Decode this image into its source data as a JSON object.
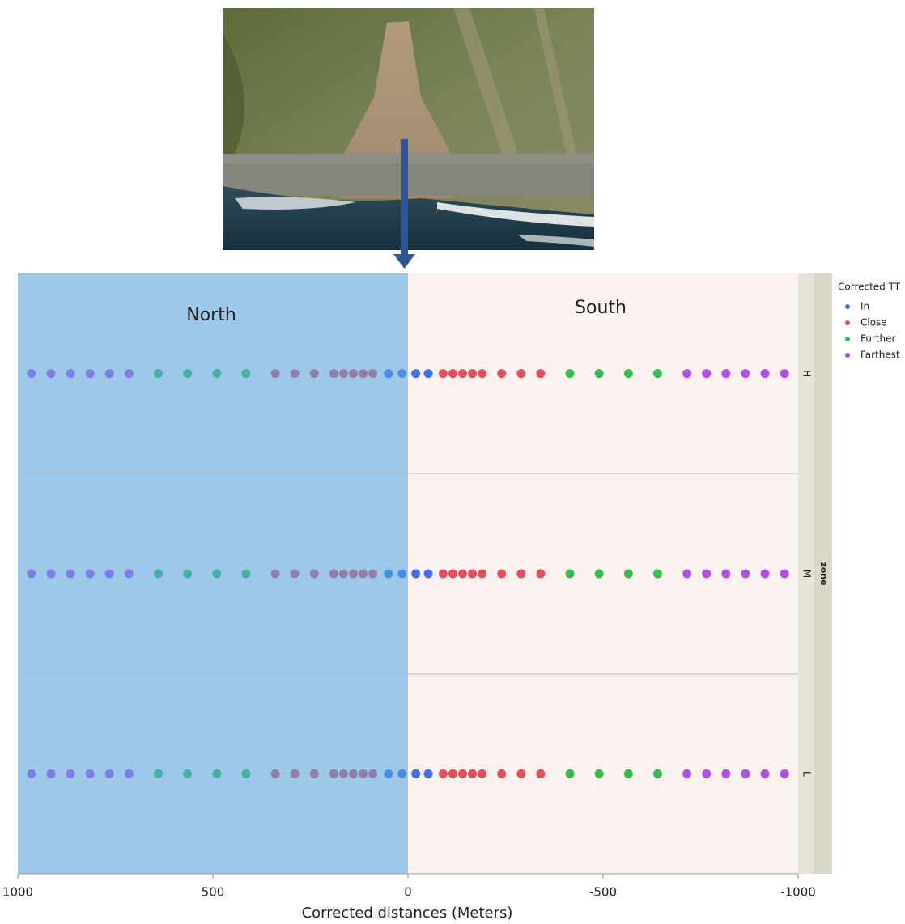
{
  "chart_data": {
    "type": "strip",
    "xlabel": "Corrected distances (Meters)",
    "xlim": [
      1000,
      -1000
    ],
    "xticks": [
      1000,
      500,
      0,
      -500,
      -1000
    ],
    "zone_title": "zone",
    "zones": [
      "H",
      "M",
      "L"
    ],
    "annotations": [
      "North",
      "South"
    ],
    "legend_title": "Corrected TT",
    "series": [
      {
        "name": "In",
        "color": "#3f6fe6",
        "x": [
          [
            50,
            15,
            -20,
            -52
          ],
          [
            50,
            15,
            -20,
            -52
          ],
          [
            50,
            15,
            -20,
            -52
          ]
        ]
      },
      {
        "name": "Close",
        "color": "#e2505c",
        "x": [
          [
            340,
            290,
            240,
            190,
            165,
            140,
            115,
            90,
            -90,
            -115,
            -140,
            -165,
            -190,
            -240,
            -290,
            -340
          ],
          [
            340,
            290,
            240,
            190,
            165,
            140,
            115,
            90,
            -90,
            -115,
            -140,
            -165,
            -190,
            -240,
            -290,
            -340
          ],
          [
            340,
            290,
            240,
            190,
            165,
            140,
            115,
            90,
            -90,
            -115,
            -140,
            -165,
            -190,
            -240,
            -290,
            -340
          ]
        ]
      },
      {
        "name": "Further",
        "color": "#35bb50",
        "x": [
          [
            640,
            565,
            490,
            415,
            -415,
            -490,
            -565,
            -640
          ],
          [
            640,
            565,
            490,
            415,
            -415,
            -490,
            -565,
            -640
          ],
          [
            640,
            565,
            490,
            415,
            -415,
            -490,
            -565,
            -640
          ]
        ]
      },
      {
        "name": "Farthest",
        "color": "#b24ee4",
        "x": [
          [
            965,
            915,
            865,
            815,
            765,
            715,
            -715,
            -765,
            -815,
            -865,
            -915,
            -965
          ],
          [
            965,
            915,
            865,
            815,
            765,
            715,
            -715,
            -765,
            -815,
            -865,
            -915,
            -965
          ],
          [
            965,
            915,
            865,
            815,
            765,
            715,
            -715,
            -765,
            -815,
            -865,
            -915,
            -965
          ]
        ]
      }
    ]
  }
}
